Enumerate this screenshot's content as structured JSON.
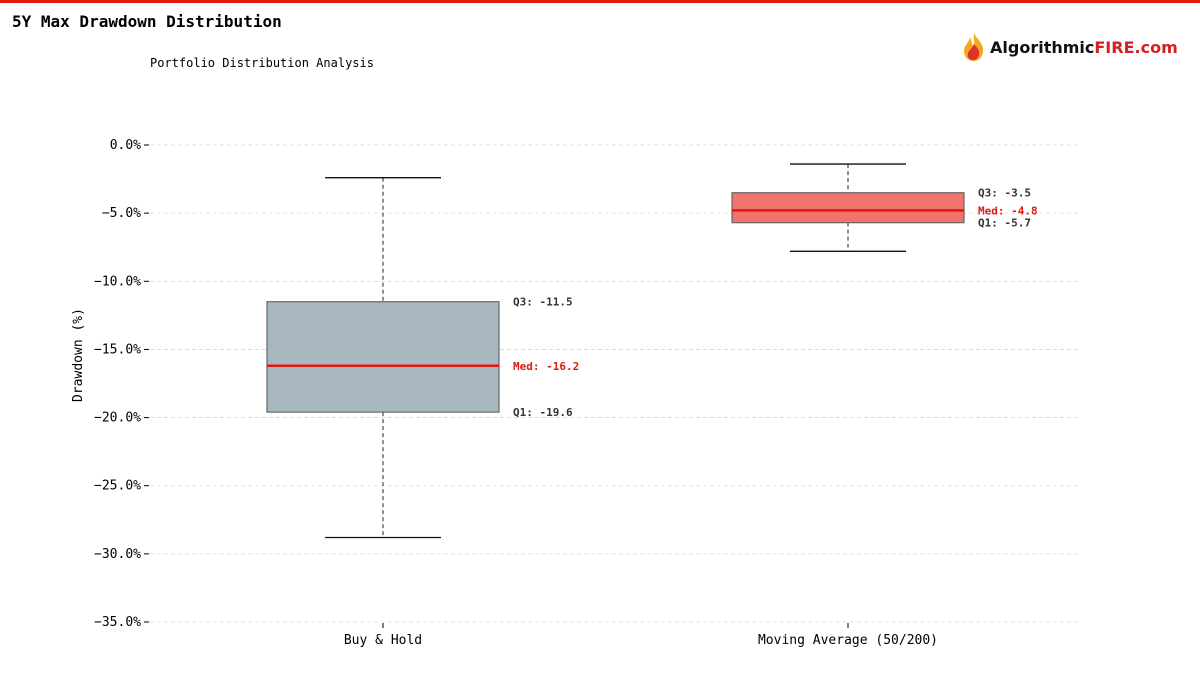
{
  "header": {
    "title": "5Y Max Drawdown Distribution",
    "subtitle": "Portfolio Distribution Analysis"
  },
  "logo": {
    "text_main": "Algorithmic",
    "text_accent": "FIRE.com"
  },
  "colors": {
    "accent": "#e0190f",
    "box_bh": "#a9b8bf",
    "box_ma": "#f0736c",
    "median": "#e0190f"
  },
  "chart_data": {
    "type": "box",
    "title": "5Y Max Drawdown Distribution",
    "ylabel": "Drawdown (%)",
    "ylim": [
      -35,
      0
    ],
    "yticks": [
      0,
      -5,
      -10,
      -15,
      -20,
      -25,
      -30,
      -35
    ],
    "ytick_labels": [
      "0.0%",
      "−5.0%",
      "−10.0%",
      "−15.0%",
      "−20.0%",
      "−25.0%",
      "−30.0%",
      "−35.0%"
    ],
    "grid": true,
    "categories": [
      "Buy & Hold",
      "Moving Average (50/200)"
    ],
    "series": [
      {
        "name": "Buy & Hold",
        "whisker_high": -2.4,
        "q3": -11.5,
        "median": -16.2,
        "q1": -19.6,
        "whisker_low": -28.8,
        "labels": {
          "q3": "Q3: -11.5",
          "med": "Med: -16.2",
          "q1": "Q1: -19.6"
        }
      },
      {
        "name": "Moving Average (50/200)",
        "whisker_high": -1.4,
        "q3": -3.5,
        "median": -4.8,
        "q1": -5.7,
        "whisker_low": -7.8,
        "labels": {
          "q3": "Q3: -3.5",
          "med": "Med: -4.8",
          "q1": "Q1: -5.7"
        }
      }
    ]
  }
}
